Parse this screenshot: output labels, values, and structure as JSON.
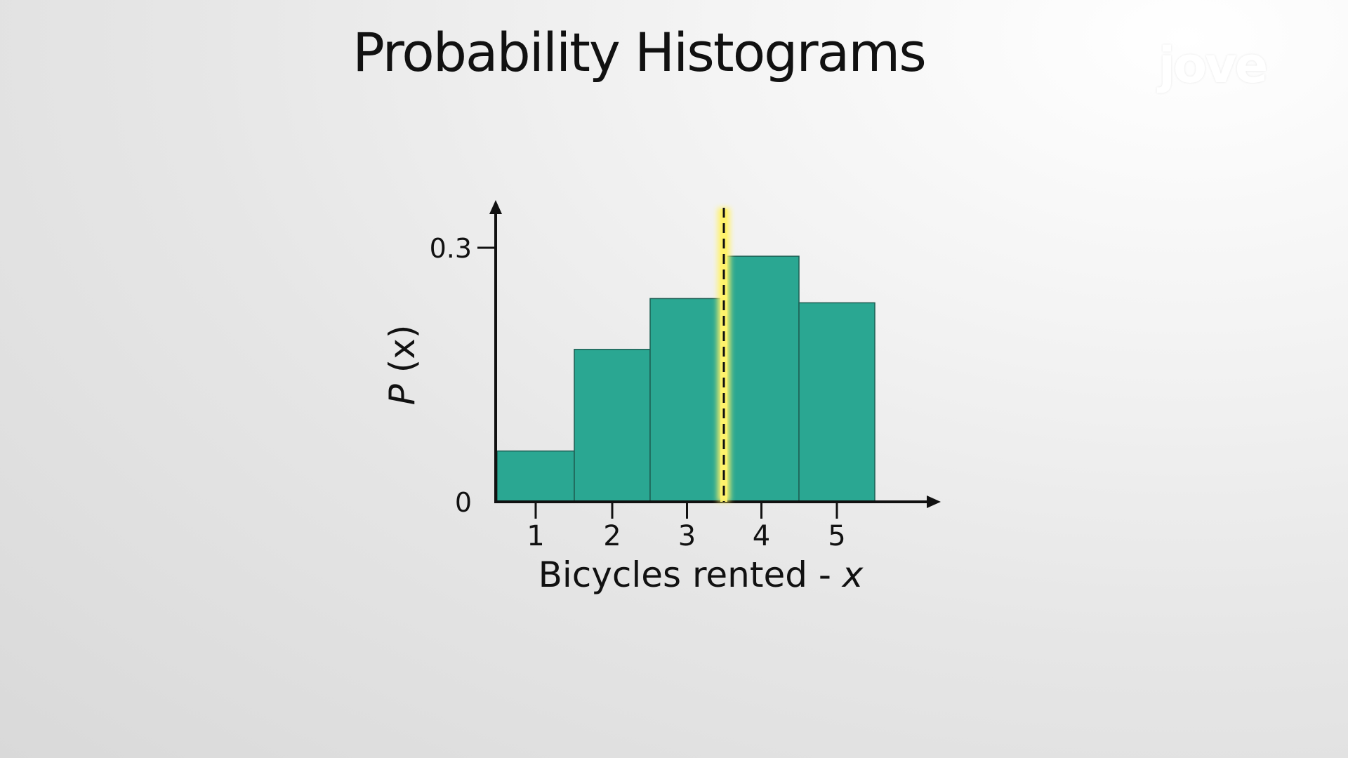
{
  "slide": {
    "title": "Probability Histograms",
    "logo_text": "jove"
  },
  "colors": {
    "bar_fill": "#2aa792",
    "bar_stroke": "#1d5e53",
    "highlight": "#fff36b",
    "axis": "#111111"
  },
  "chart_data": {
    "type": "bar",
    "categories": [
      "1",
      "2",
      "3",
      "4",
      "5"
    ],
    "values": [
      0.06,
      0.18,
      0.24,
      0.29,
      0.235
    ],
    "xlabel_main": "Bicycles rented - ",
    "xlabel_var": "x",
    "ylabel_fn": "P",
    "ylabel_arg": " (x)",
    "yticks": [
      "0",
      "0.3"
    ],
    "ylim": [
      0,
      0.35
    ],
    "mean_marker": 3.5,
    "grid": false
  }
}
